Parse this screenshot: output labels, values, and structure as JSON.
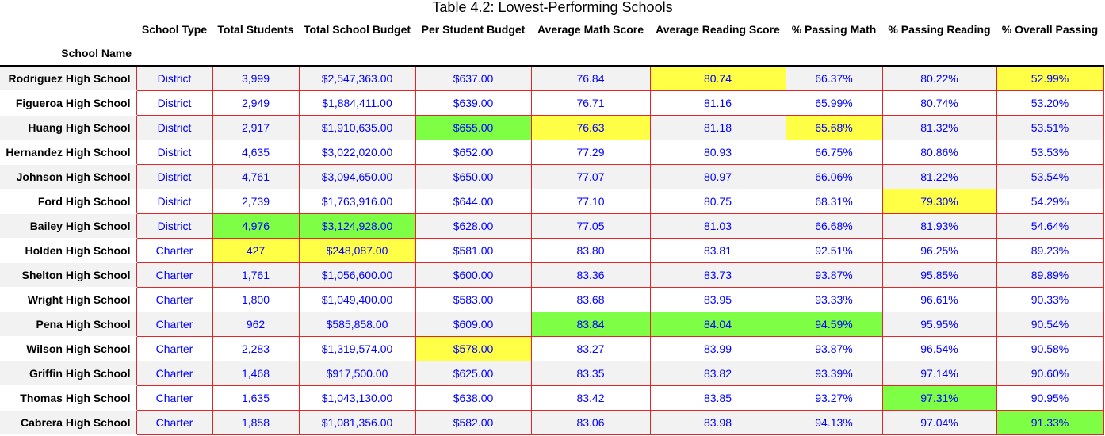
{
  "title": "Table 4.2: Lowest-Performing Schools",
  "index_name": "School Name",
  "columns": [
    "School Type",
    "Total Students",
    "Total School Budget",
    "Per Student Budget",
    "Average Math Score",
    "Average Reading Score",
    "% Passing Math",
    "% Passing Reading",
    "% Overall Passing"
  ],
  "highlight_colors": {
    "yellow": "#ffff45",
    "green": "#7eff45",
    "cell_border": "#e0262b",
    "value_text": "#0000ff"
  },
  "rows": [
    {
      "name": "Rodriguez High School",
      "cells": [
        "District",
        "3,999",
        "$2,547,363.00",
        "$637.00",
        "76.84",
        "80.74",
        "66.37%",
        "80.22%",
        "52.99%"
      ],
      "highlight": {
        "5": "yellow",
        "8": "yellow"
      }
    },
    {
      "name": "Figueroa High School",
      "cells": [
        "District",
        "2,949",
        "$1,884,411.00",
        "$639.00",
        "76.71",
        "81.16",
        "65.99%",
        "80.74%",
        "53.20%"
      ],
      "highlight": {}
    },
    {
      "name": "Huang High School",
      "cells": [
        "District",
        "2,917",
        "$1,910,635.00",
        "$655.00",
        "76.63",
        "81.18",
        "65.68%",
        "81.32%",
        "53.51%"
      ],
      "highlight": {
        "3": "green",
        "4": "yellow",
        "6": "yellow"
      }
    },
    {
      "name": "Hernandez High School",
      "cells": [
        "District",
        "4,635",
        "$3,022,020.00",
        "$652.00",
        "77.29",
        "80.93",
        "66.75%",
        "80.86%",
        "53.53%"
      ],
      "highlight": {}
    },
    {
      "name": "Johnson High School",
      "cells": [
        "District",
        "4,761",
        "$3,094,650.00",
        "$650.00",
        "77.07",
        "80.97",
        "66.06%",
        "81.22%",
        "53.54%"
      ],
      "highlight": {}
    },
    {
      "name": "Ford High School",
      "cells": [
        "District",
        "2,739",
        "$1,763,916.00",
        "$644.00",
        "77.10",
        "80.75",
        "68.31%",
        "79.30%",
        "54.29%"
      ],
      "highlight": {
        "7": "yellow"
      }
    },
    {
      "name": "Bailey High School",
      "cells": [
        "District",
        "4,976",
        "$3,124,928.00",
        "$628.00",
        "77.05",
        "81.03",
        "66.68%",
        "81.93%",
        "54.64%"
      ],
      "highlight": {
        "1": "green",
        "2": "green"
      }
    },
    {
      "name": "Holden High School",
      "cells": [
        "Charter",
        "427",
        "$248,087.00",
        "$581.00",
        "83.80",
        "83.81",
        "92.51%",
        "96.25%",
        "89.23%"
      ],
      "highlight": {
        "1": "yellow",
        "2": "yellow"
      }
    },
    {
      "name": "Shelton High School",
      "cells": [
        "Charter",
        "1,761",
        "$1,056,600.00",
        "$600.00",
        "83.36",
        "83.73",
        "93.87%",
        "95.85%",
        "89.89%"
      ],
      "highlight": {}
    },
    {
      "name": "Wright High School",
      "cells": [
        "Charter",
        "1,800",
        "$1,049,400.00",
        "$583.00",
        "83.68",
        "83.95",
        "93.33%",
        "96.61%",
        "90.33%"
      ],
      "highlight": {}
    },
    {
      "name": "Pena High School",
      "cells": [
        "Charter",
        "962",
        "$585,858.00",
        "$609.00",
        "83.84",
        "84.04",
        "94.59%",
        "95.95%",
        "90.54%"
      ],
      "highlight": {
        "4": "green",
        "5": "green",
        "6": "green"
      }
    },
    {
      "name": "Wilson High School",
      "cells": [
        "Charter",
        "2,283",
        "$1,319,574.00",
        "$578.00",
        "83.27",
        "83.99",
        "93.87%",
        "96.54%",
        "90.58%"
      ],
      "highlight": {
        "3": "yellow"
      }
    },
    {
      "name": "Griffin High School",
      "cells": [
        "Charter",
        "1,468",
        "$917,500.00",
        "$625.00",
        "83.35",
        "83.82",
        "93.39%",
        "97.14%",
        "90.60%"
      ],
      "highlight": {}
    },
    {
      "name": "Thomas High School",
      "cells": [
        "Charter",
        "1,635",
        "$1,043,130.00",
        "$638.00",
        "83.42",
        "83.85",
        "93.27%",
        "97.31%",
        "90.95%"
      ],
      "highlight": {
        "7": "green"
      }
    },
    {
      "name": "Cabrera High School",
      "cells": [
        "Charter",
        "1,858",
        "$1,081,356.00",
        "$582.00",
        "83.06",
        "83.98",
        "94.13%",
        "97.04%",
        "91.33%"
      ],
      "highlight": {
        "8": "green"
      }
    }
  ]
}
